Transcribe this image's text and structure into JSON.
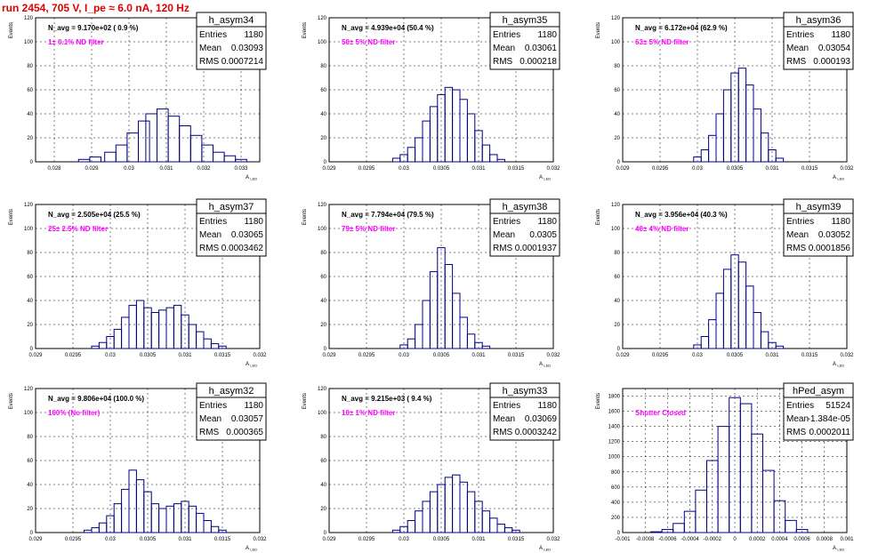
{
  "run_title": "run 2454,   705 V, I_pe ≈ 6.0 nA, 120 Hz",
  "colors": {
    "histogram": "#000080",
    "filter_label": "#ff00ff",
    "title": "#e00000",
    "grid": "#000000"
  },
  "common": {
    "y_axis_label": "Events",
    "x_axis_label": "A",
    "x_axis_label_sub": "LED",
    "stat_entries": "Entries",
    "stat_mean": "Mean",
    "stat_rms": "RMS"
  },
  "chart_data": [
    {
      "type": "bar",
      "name": "h_asym34",
      "n_avg": "N_avg = 9.170e+02 ( 0.9 %)",
      "filter": "1± 0.1% ND filter",
      "entries": "1180",
      "mean": "0.03093",
      "rms": "0.0007214",
      "xlim": [
        0.0275,
        0.0335
      ],
      "ylim": [
        0,
        120
      ],
      "xticks": [
        "0.028",
        "0.029",
        "0.03",
        "0.031",
        "0.032",
        "0.033"
      ],
      "yticks": [
        "0",
        "20",
        "40",
        "60",
        "80",
        "100",
        "120"
      ],
      "x": [
        0.0288,
        0.0291,
        0.0295,
        0.0298,
        0.0301,
        0.0304,
        0.0306,
        0.0309,
        0.0312,
        0.0315,
        0.0318,
        0.0321,
        0.0324,
        0.0327,
        0.033
      ],
      "values": [
        2,
        4,
        8,
        14,
        24,
        34,
        40,
        44,
        38,
        30,
        22,
        14,
        8,
        5,
        2
      ]
    },
    {
      "type": "bar",
      "name": "h_asym35",
      "n_avg": "N_avg = 4.939e+04 (50.4 %)",
      "filter": "50± 5% ND filter",
      "entries": "1180",
      "mean": "0.03061",
      "rms": "0.000218",
      "xlim": [
        0.029,
        0.032
      ],
      "ylim": [
        0,
        120
      ],
      "xticks": [
        "0.029",
        "0.0295",
        "0.03",
        "0.0305",
        "0.031",
        "0.0315",
        "0.032"
      ],
      "yticks": [
        "0",
        "20",
        "40",
        "60",
        "80",
        "100",
        "120"
      ],
      "x": [
        0.0299,
        0.03,
        0.0301,
        0.0302,
        0.0303,
        0.0304,
        0.0305,
        0.0306,
        0.0307,
        0.0308,
        0.0309,
        0.031,
        0.0311,
        0.0312,
        0.0313
      ],
      "values": [
        3,
        6,
        12,
        20,
        34,
        46,
        56,
        62,
        60,
        52,
        40,
        26,
        14,
        6,
        2
      ]
    },
    {
      "type": "bar",
      "name": "h_asym36",
      "n_avg": "N_avg = 6.172e+04 (62.9 %)",
      "filter": "63± 5% ND filter",
      "entries": "1180",
      "mean": "0.03054",
      "rms": "0.000193",
      "xlim": [
        0.029,
        0.032
      ],
      "ylim": [
        0,
        120
      ],
      "xticks": [
        "0.029",
        "0.0295",
        "0.03",
        "0.0305",
        "0.031",
        "0.0315",
        "0.032"
      ],
      "yticks": [
        "0",
        "20",
        "40",
        "60",
        "80",
        "100",
        "120"
      ],
      "x": [
        0.03,
        0.0301,
        0.0302,
        0.0303,
        0.0304,
        0.0305,
        0.0306,
        0.0307,
        0.0308,
        0.0309,
        0.031,
        0.0311
      ],
      "values": [
        4,
        10,
        22,
        40,
        60,
        74,
        78,
        64,
        44,
        24,
        10,
        3
      ]
    },
    {
      "type": "bar",
      "name": "h_asym37",
      "n_avg": "N_avg = 2.505e+04 (25.5 %)",
      "filter": "25± 2.5% ND filter",
      "entries": "1180",
      "mean": "0.03065",
      "rms": "0.0003462",
      "xlim": [
        0.029,
        0.032
      ],
      "ylim": [
        0,
        120
      ],
      "xticks": [
        "0.029",
        "0.0295",
        "0.03",
        "0.0305",
        "0.031",
        "0.0315",
        "0.032"
      ],
      "yticks": [
        "0",
        "20",
        "40",
        "60",
        "80",
        "100",
        "120"
      ],
      "x": [
        0.0298,
        0.0299,
        0.03,
        0.0301,
        0.0302,
        0.0303,
        0.0304,
        0.0305,
        0.0306,
        0.0307,
        0.0308,
        0.0309,
        0.031,
        0.0311,
        0.0312,
        0.0313,
        0.0314,
        0.0315
      ],
      "values": [
        2,
        5,
        10,
        16,
        26,
        36,
        40,
        34,
        30,
        32,
        34,
        36,
        28,
        20,
        14,
        8,
        4,
        2
      ]
    },
    {
      "type": "bar",
      "name": "h_asym38",
      "n_avg": "N_avg = 7.794e+04 (79.5 %)",
      "filter": "79± 5% ND filter",
      "entries": "1180",
      "mean": "0.0305",
      "rms": "0.0001937",
      "xlim": [
        0.029,
        0.032
      ],
      "ylim": [
        0,
        120
      ],
      "xticks": [
        "0.029",
        "0.0295",
        "0.03",
        "0.0305",
        "0.031",
        "0.0315",
        "0.032"
      ],
      "yticks": [
        "0",
        "20",
        "40",
        "60",
        "80",
        "100",
        "120"
      ],
      "x": [
        0.03,
        0.0301,
        0.0302,
        0.0303,
        0.0304,
        0.0305,
        0.0306,
        0.0307,
        0.0308,
        0.0309,
        0.031,
        0.0311
      ],
      "values": [
        3,
        8,
        20,
        40,
        64,
        84,
        70,
        46,
        26,
        12,
        5,
        2
      ]
    },
    {
      "type": "bar",
      "name": "h_asym39",
      "n_avg": "N_avg = 3.956e+04 (40.3 %)",
      "filter": "40± 4% ND filter",
      "entries": "1180",
      "mean": "0.03052",
      "rms": "0.0001856",
      "xlim": [
        0.029,
        0.032
      ],
      "ylim": [
        0,
        120
      ],
      "xticks": [
        "0.029",
        "0.0295",
        "0.03",
        "0.0305",
        "0.031",
        "0.0315",
        "0.032"
      ],
      "yticks": [
        "0",
        "20",
        "40",
        "60",
        "80",
        "100",
        "120"
      ],
      "x": [
        0.03,
        0.0301,
        0.0302,
        0.0303,
        0.0304,
        0.0305,
        0.0306,
        0.0307,
        0.0308,
        0.0309,
        0.031,
        0.0311
      ],
      "values": [
        3,
        10,
        24,
        46,
        66,
        78,
        72,
        52,
        30,
        14,
        5,
        2
      ]
    },
    {
      "type": "bar",
      "name": "h_asym32",
      "n_avg": "N_avg = 9.806e+04 (100.0 %)",
      "filter": "100% (No filter)",
      "entries": "1180",
      "mean": "0.03057",
      "rms": "0.000365",
      "xlim": [
        0.029,
        0.032
      ],
      "ylim": [
        0,
        120
      ],
      "xticks": [
        "0.029",
        "0.0295",
        "0.03",
        "0.0305",
        "0.031",
        "0.0315",
        "0.032"
      ],
      "yticks": [
        "0",
        "20",
        "40",
        "60",
        "80",
        "100",
        "120"
      ],
      "x": [
        0.0297,
        0.0298,
        0.0299,
        0.03,
        0.0301,
        0.0302,
        0.0303,
        0.0304,
        0.0305,
        0.0306,
        0.0307,
        0.0308,
        0.0309,
        0.031,
        0.0311,
        0.0312,
        0.0313,
        0.0314,
        0.0315
      ],
      "values": [
        2,
        4,
        8,
        14,
        24,
        36,
        52,
        44,
        34,
        24,
        20,
        22,
        24,
        26,
        22,
        16,
        10,
        5,
        2
      ]
    },
    {
      "type": "bar",
      "name": "h_asym33",
      "n_avg": "N_avg = 9.215e+03 ( 9.4 %)",
      "filter": "10± 1% ND filter",
      "entries": "1180",
      "mean": "0.03069",
      "rms": "0.0003242",
      "xlim": [
        0.029,
        0.032
      ],
      "ylim": [
        0,
        120
      ],
      "xticks": [
        "0.029",
        "0.0295",
        "0.03",
        "0.0305",
        "0.031",
        "0.0315",
        "0.032"
      ],
      "yticks": [
        "0",
        "20",
        "40",
        "60",
        "80",
        "100",
        "120"
      ],
      "x": [
        0.0299,
        0.03,
        0.0301,
        0.0302,
        0.0303,
        0.0304,
        0.0305,
        0.0306,
        0.0307,
        0.0308,
        0.0309,
        0.031,
        0.0311,
        0.0312,
        0.0313,
        0.0314,
        0.0315
      ],
      "values": [
        2,
        5,
        10,
        18,
        26,
        34,
        40,
        46,
        48,
        42,
        34,
        26,
        18,
        12,
        7,
        4,
        2
      ]
    },
    {
      "type": "bar",
      "name": "hPed_asym",
      "n_avg": "",
      "filter": "Shutter Closed",
      "entries": "51524",
      "mean": "-1.384e-05",
      "rms": "0.0002011",
      "xlim": [
        -0.001,
        0.001
      ],
      "ylim": [
        0,
        1900
      ],
      "xticks": [
        "-0.001",
        "-0.0008",
        "-0.0006",
        "-0.0004",
        "-0.0002",
        "0",
        "0.0002",
        "0.0004",
        "0.0006",
        "0.0008",
        "0.001"
      ],
      "yticks": [
        "0",
        "200",
        "400",
        "600",
        "800",
        "1000",
        "1200",
        "1400",
        "1600",
        "1800"
      ],
      "x": [
        -0.0007,
        -0.0006,
        -0.0005,
        -0.0004,
        -0.0003,
        -0.0002,
        -0.0001,
        0,
        0.0001,
        0.0002,
        0.0003,
        0.0004,
        0.0005,
        0.0006
      ],
      "values": [
        10,
        40,
        120,
        280,
        560,
        950,
        1400,
        1780,
        1700,
        1300,
        820,
        420,
        160,
        40
      ]
    }
  ]
}
